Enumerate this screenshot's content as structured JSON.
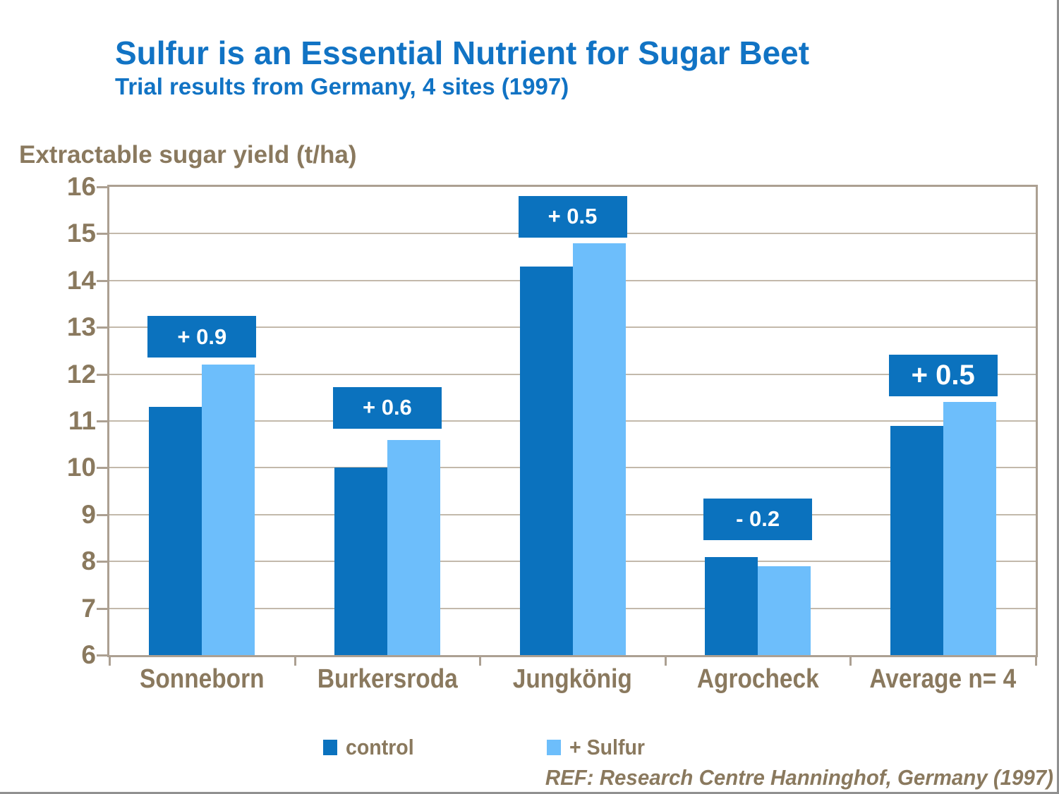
{
  "page": {
    "title": "Sulfur is an Essential Nutrient for Sugar Beet",
    "subtitle": "Trial results from Germany, 4 sites (1997)",
    "axis_title": "Extractable sugar yield (t/ha)",
    "reference": "REF: Research Centre Hanninghof, Germany (1997)"
  },
  "colors": {
    "title_blue": "#1173C4",
    "control_blue": "#0B72BE",
    "sulfur_blue": "#6DBEFB",
    "annotation_blue": "#0B72BE",
    "text_brown": "#8A795E",
    "grid": "#C3B9AB",
    "frame": "#ACA092",
    "page_border": "#909090"
  },
  "chart_data": {
    "type": "bar",
    "categories": [
      "Sonneborn",
      "Burkersroda",
      "Jungkönig",
      "Agrocheck",
      "Average n= 4"
    ],
    "series": [
      {
        "name": "control",
        "color_key": "control_blue",
        "values": [
          11.3,
          10.0,
          14.3,
          8.1,
          10.9
        ]
      },
      {
        "name": "+ Sulfur",
        "color_key": "sulfur_blue",
        "values": [
          12.2,
          10.6,
          14.8,
          7.9,
          11.4
        ]
      }
    ],
    "annotations": [
      {
        "category": "Sonneborn",
        "label": "+ 0.9",
        "emphasis": false
      },
      {
        "category": "Burkersroda",
        "label": "+ 0.6",
        "emphasis": false
      },
      {
        "category": "Jungkönig",
        "label": "+ 0.5",
        "emphasis": false
      },
      {
        "category": "Agrocheck",
        "label": "- 0.2",
        "emphasis": false
      },
      {
        "category": "Average n= 4",
        "label": "+ 0.5",
        "emphasis": true
      }
    ],
    "ylim": [
      6,
      16
    ],
    "ytick_step": 1,
    "grid": "horizontal",
    "legend_position": "bottom"
  }
}
